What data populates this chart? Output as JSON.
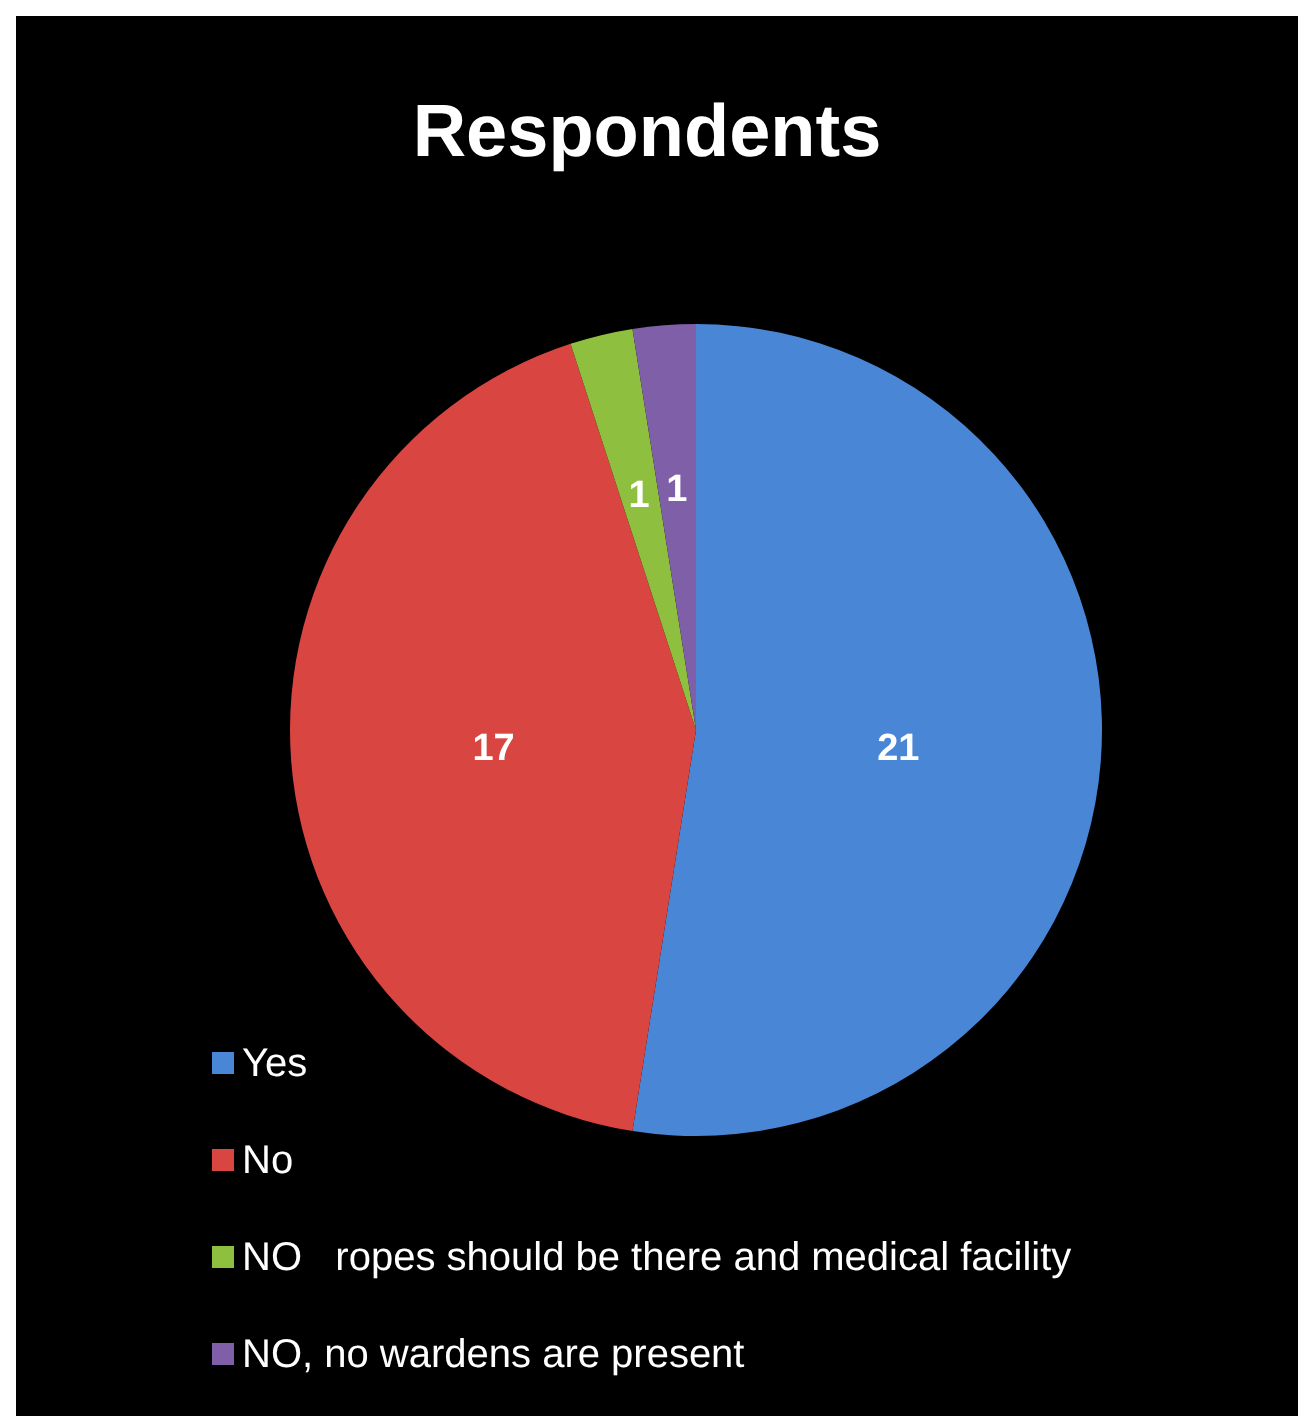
{
  "chart_data": {
    "type": "pie",
    "title": "Respondents",
    "categories": [
      "Yes",
      "No",
      "NO   ropes should be there and medical facility",
      "NO, no wardens are present"
    ],
    "values": [
      21,
      17,
      1,
      1
    ],
    "colors": [
      "#4a86d6",
      "#d94541",
      "#8fbf3f",
      "#7f5fa8"
    ],
    "data_labels": true,
    "legend": "bottom"
  }
}
